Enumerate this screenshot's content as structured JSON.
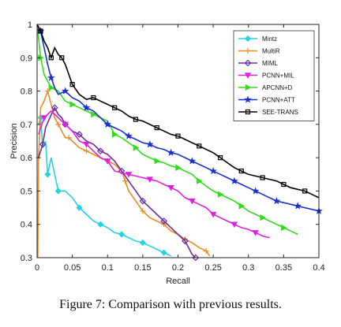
{
  "caption": "Figure 7: Comparison with previous results.",
  "chart_data": {
    "type": "line",
    "title": "",
    "xlabel": "Recall",
    "ylabel": "Precision",
    "xlim": [
      0,
      0.4
    ],
    "ylim": [
      0.3,
      1.0
    ],
    "x_ticks": [
      "0",
      "0.05",
      "0.1",
      "0.15",
      "0.2",
      "0.25",
      "0.3",
      "0.35",
      "0.4"
    ],
    "y_ticks": [
      "0.3",
      "0.4",
      "0.5",
      "0.6",
      "0.7",
      "0.8",
      "0.9",
      "1"
    ],
    "grid": false,
    "legend_position": "top-right",
    "series": [
      {
        "name": "Mintz",
        "color": "#22d3e0",
        "marker": "diamond",
        "points": [
          [
            0.002,
            0.7
          ],
          [
            0.005,
            0.72
          ],
          [
            0.008,
            0.63
          ],
          [
            0.012,
            0.65
          ],
          [
            0.015,
            0.55
          ],
          [
            0.02,
            0.6
          ],
          [
            0.025,
            0.55
          ],
          [
            0.03,
            0.5
          ],
          [
            0.04,
            0.5
          ],
          [
            0.05,
            0.48
          ],
          [
            0.06,
            0.45
          ],
          [
            0.07,
            0.43
          ],
          [
            0.08,
            0.41
          ],
          [
            0.09,
            0.4
          ],
          [
            0.1,
            0.39
          ],
          [
            0.11,
            0.375
          ],
          [
            0.12,
            0.37
          ],
          [
            0.13,
            0.36
          ],
          [
            0.14,
            0.35
          ],
          [
            0.15,
            0.345
          ],
          [
            0.16,
            0.335
          ],
          [
            0.17,
            0.325
          ],
          [
            0.18,
            0.315
          ],
          [
            0.19,
            0.305
          ]
        ]
      },
      {
        "name": "MultiR",
        "color": "#f08a24",
        "marker": "plus",
        "points": [
          [
            0.001,
            0.3
          ],
          [
            0.002,
            0.6
          ],
          [
            0.005,
            0.75
          ],
          [
            0.01,
            0.77
          ],
          [
            0.015,
            0.8
          ],
          [
            0.02,
            0.76
          ],
          [
            0.025,
            0.72
          ],
          [
            0.03,
            0.7
          ],
          [
            0.035,
            0.68
          ],
          [
            0.04,
            0.66
          ],
          [
            0.045,
            0.66
          ],
          [
            0.05,
            0.65
          ],
          [
            0.06,
            0.63
          ],
          [
            0.07,
            0.62
          ],
          [
            0.08,
            0.61
          ],
          [
            0.09,
            0.6
          ],
          [
            0.1,
            0.59
          ],
          [
            0.11,
            0.58
          ],
          [
            0.12,
            0.56
          ],
          [
            0.125,
            0.53
          ],
          [
            0.13,
            0.5
          ],
          [
            0.14,
            0.47
          ],
          [
            0.15,
            0.44
          ],
          [
            0.16,
            0.42
          ],
          [
            0.17,
            0.41
          ],
          [
            0.18,
            0.4
          ],
          [
            0.19,
            0.38
          ],
          [
            0.2,
            0.37
          ],
          [
            0.21,
            0.355
          ],
          [
            0.22,
            0.345
          ],
          [
            0.23,
            0.33
          ],
          [
            0.24,
            0.32
          ],
          [
            0.245,
            0.305
          ]
        ]
      },
      {
        "name": "MIML",
        "color": "#6a2ca6",
        "marker": "diamond-open",
        "points": [
          [
            0.002,
            0.6
          ],
          [
            0.008,
            0.64
          ],
          [
            0.012,
            0.69
          ],
          [
            0.018,
            0.72
          ],
          [
            0.025,
            0.75
          ],
          [
            0.03,
            0.73
          ],
          [
            0.035,
            0.72
          ],
          [
            0.04,
            0.7
          ],
          [
            0.045,
            0.69
          ],
          [
            0.05,
            0.68
          ],
          [
            0.06,
            0.67
          ],
          [
            0.07,
            0.65
          ],
          [
            0.08,
            0.64
          ],
          [
            0.09,
            0.62
          ],
          [
            0.1,
            0.61
          ],
          [
            0.11,
            0.59
          ],
          [
            0.12,
            0.56
          ],
          [
            0.13,
            0.53
          ],
          [
            0.14,
            0.5
          ],
          [
            0.15,
            0.47
          ],
          [
            0.16,
            0.45
          ],
          [
            0.17,
            0.43
          ],
          [
            0.18,
            0.41
          ],
          [
            0.19,
            0.39
          ],
          [
            0.2,
            0.37
          ],
          [
            0.21,
            0.35
          ],
          [
            0.215,
            0.33
          ],
          [
            0.22,
            0.31
          ],
          [
            0.225,
            0.3
          ]
        ]
      },
      {
        "name": "PCNN+MIL",
        "color": "#e020e0",
        "marker": "triangle-down",
        "points": [
          [
            0.002,
            0.67
          ],
          [
            0.01,
            0.72
          ],
          [
            0.02,
            0.74
          ],
          [
            0.03,
            0.72
          ],
          [
            0.04,
            0.7
          ],
          [
            0.05,
            0.68
          ],
          [
            0.06,
            0.65
          ],
          [
            0.07,
            0.64
          ],
          [
            0.08,
            0.62
          ],
          [
            0.09,
            0.6
          ],
          [
            0.1,
            0.59
          ],
          [
            0.11,
            0.56
          ],
          [
            0.12,
            0.555
          ],
          [
            0.13,
            0.55
          ],
          [
            0.14,
            0.545
          ],
          [
            0.15,
            0.54
          ],
          [
            0.16,
            0.535
          ],
          [
            0.17,
            0.53
          ],
          [
            0.18,
            0.52
          ],
          [
            0.19,
            0.51
          ],
          [
            0.2,
            0.5
          ],
          [
            0.21,
            0.48
          ],
          [
            0.22,
            0.47
          ],
          [
            0.23,
            0.46
          ],
          [
            0.24,
            0.45
          ],
          [
            0.25,
            0.43
          ],
          [
            0.26,
            0.42
          ],
          [
            0.27,
            0.41
          ],
          [
            0.28,
            0.4
          ],
          [
            0.29,
            0.39
          ],
          [
            0.3,
            0.385
          ],
          [
            0.31,
            0.375
          ],
          [
            0.32,
            0.365
          ],
          [
            0.33,
            0.36
          ]
        ]
      },
      {
        "name": "APCNN+D",
        "color": "#2fdc1a",
        "marker": "triangle-right",
        "points": [
          [
            0.0,
            1.0
          ],
          [
            0.005,
            0.9
          ],
          [
            0.01,
            0.85
          ],
          [
            0.015,
            0.83
          ],
          [
            0.02,
            0.81
          ],
          [
            0.03,
            0.8
          ],
          [
            0.04,
            0.77
          ],
          [
            0.05,
            0.76
          ],
          [
            0.06,
            0.75
          ],
          [
            0.07,
            0.74
          ],
          [
            0.08,
            0.73
          ],
          [
            0.09,
            0.72
          ],
          [
            0.1,
            0.71
          ],
          [
            0.11,
            0.67
          ],
          [
            0.12,
            0.66
          ],
          [
            0.13,
            0.645
          ],
          [
            0.14,
            0.63
          ],
          [
            0.15,
            0.61
          ],
          [
            0.16,
            0.6
          ],
          [
            0.17,
            0.59
          ],
          [
            0.18,
            0.585
          ],
          [
            0.19,
            0.575
          ],
          [
            0.2,
            0.57
          ],
          [
            0.21,
            0.56
          ],
          [
            0.22,
            0.55
          ],
          [
            0.23,
            0.53
          ],
          [
            0.24,
            0.515
          ],
          [
            0.25,
            0.5
          ],
          [
            0.26,
            0.49
          ],
          [
            0.27,
            0.48
          ],
          [
            0.28,
            0.47
          ],
          [
            0.29,
            0.455
          ],
          [
            0.3,
            0.44
          ],
          [
            0.31,
            0.43
          ],
          [
            0.32,
            0.42
          ],
          [
            0.33,
            0.41
          ],
          [
            0.34,
            0.4
          ],
          [
            0.35,
            0.39
          ],
          [
            0.36,
            0.38
          ],
          [
            0.37,
            0.37
          ]
        ]
      },
      {
        "name": "PCNN+ATT",
        "color": "#1a30d0",
        "marker": "star",
        "points": [
          [
            0.0,
            1.0
          ],
          [
            0.005,
            0.98
          ],
          [
            0.01,
            0.93
          ],
          [
            0.015,
            0.88
          ],
          [
            0.02,
            0.84
          ],
          [
            0.025,
            0.81
          ],
          [
            0.03,
            0.79
          ],
          [
            0.04,
            0.8
          ],
          [
            0.05,
            0.78
          ],
          [
            0.06,
            0.77
          ],
          [
            0.07,
            0.75
          ],
          [
            0.08,
            0.74
          ],
          [
            0.09,
            0.72
          ],
          [
            0.1,
            0.7
          ],
          [
            0.11,
            0.69
          ],
          [
            0.12,
            0.68
          ],
          [
            0.13,
            0.665
          ],
          [
            0.14,
            0.655
          ],
          [
            0.15,
            0.645
          ],
          [
            0.16,
            0.64
          ],
          [
            0.17,
            0.63
          ],
          [
            0.18,
            0.625
          ],
          [
            0.19,
            0.615
          ],
          [
            0.2,
            0.61
          ],
          [
            0.21,
            0.6
          ],
          [
            0.22,
            0.59
          ],
          [
            0.23,
            0.58
          ],
          [
            0.24,
            0.57
          ],
          [
            0.25,
            0.56
          ],
          [
            0.26,
            0.55
          ],
          [
            0.27,
            0.54
          ],
          [
            0.28,
            0.53
          ],
          [
            0.29,
            0.52
          ],
          [
            0.3,
            0.51
          ],
          [
            0.31,
            0.5
          ],
          [
            0.32,
            0.49
          ],
          [
            0.33,
            0.48
          ],
          [
            0.34,
            0.47
          ],
          [
            0.35,
            0.465
          ],
          [
            0.36,
            0.46
          ],
          [
            0.37,
            0.455
          ],
          [
            0.38,
            0.45
          ],
          [
            0.39,
            0.445
          ],
          [
            0.4,
            0.44
          ]
        ]
      },
      {
        "name": "SEE-TRANS",
        "color": "#000000",
        "marker": "square",
        "points": [
          [
            0.0,
            1.0
          ],
          [
            0.005,
            0.98
          ],
          [
            0.01,
            0.95
          ],
          [
            0.015,
            0.93
          ],
          [
            0.02,
            0.9
          ],
          [
            0.025,
            0.93
          ],
          [
            0.03,
            0.91
          ],
          [
            0.035,
            0.9
          ],
          [
            0.04,
            0.88
          ],
          [
            0.045,
            0.85
          ],
          [
            0.05,
            0.82
          ],
          [
            0.06,
            0.79
          ],
          [
            0.07,
            0.775
          ],
          [
            0.08,
            0.78
          ],
          [
            0.09,
            0.77
          ],
          [
            0.1,
            0.76
          ],
          [
            0.11,
            0.75
          ],
          [
            0.12,
            0.74
          ],
          [
            0.13,
            0.725
          ],
          [
            0.14,
            0.715
          ],
          [
            0.15,
            0.71
          ],
          [
            0.16,
            0.7
          ],
          [
            0.17,
            0.69
          ],
          [
            0.18,
            0.68
          ],
          [
            0.19,
            0.67
          ],
          [
            0.2,
            0.665
          ],
          [
            0.21,
            0.655
          ],
          [
            0.22,
            0.645
          ],
          [
            0.23,
            0.635
          ],
          [
            0.24,
            0.625
          ],
          [
            0.25,
            0.615
          ],
          [
            0.26,
            0.6
          ],
          [
            0.27,
            0.585
          ],
          [
            0.28,
            0.57
          ],
          [
            0.29,
            0.56
          ],
          [
            0.3,
            0.55
          ],
          [
            0.31,
            0.545
          ],
          [
            0.32,
            0.54
          ],
          [
            0.33,
            0.535
          ],
          [
            0.34,
            0.53
          ],
          [
            0.35,
            0.52
          ],
          [
            0.36,
            0.51
          ],
          [
            0.37,
            0.505
          ],
          [
            0.38,
            0.5
          ],
          [
            0.39,
            0.49
          ],
          [
            0.4,
            0.48
          ]
        ]
      }
    ]
  }
}
